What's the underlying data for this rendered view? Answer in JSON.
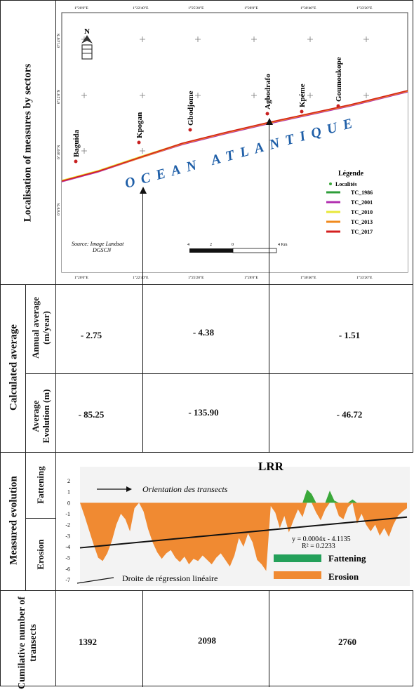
{
  "rows": {
    "localisation": "Localisation of measures by sectors",
    "calculated": "Calculated average",
    "annual": "Annual average (m/year)",
    "average_evolution": "Average Evolution (m)",
    "measured": "Measured evolution",
    "fattening": "Fattening",
    "erosion": "Erosion",
    "cumulative": "Cumilative number of transects"
  },
  "map": {
    "top_ticks": [
      "1°20'0\"E",
      "1°22'40\"E",
      "1°25'20\"E",
      "1°28'0\"E",
      "1°30'40\"E",
      "1°33'20\"E"
    ],
    "bottom_ticks": [
      "1°20'0\"E",
      "1°22'40\"E",
      "1°25'20\"E",
      "1°28'0\"E",
      "1°30'40\"E",
      "1°33'20\"E"
    ],
    "left_ticks": [
      "6°14'0\"N",
      "6°12'0\"N",
      "6°10'0\"N",
      "6°8'0\"N"
    ],
    "localities": [
      "Baguida",
      "Kpogan",
      "Gbodjome",
      "Agbodrafo",
      "Kpéme",
      "Goumoukope"
    ],
    "ocean_label": "OCEAN ATLANTIQUE",
    "north_label": "N",
    "source": "Source: Image Landsat DGSCN",
    "scale_labels": [
      "4",
      "2",
      "0",
      "4 Km"
    ],
    "legend": {
      "title": "Légende",
      "localites": "Localités",
      "items": [
        {
          "label": "TC_1986",
          "color": "#2e9e3a"
        },
        {
          "label": "TC_2001",
          "color": "#b22fb0"
        },
        {
          "label": "TC_2010",
          "color": "#e8e83a"
        },
        {
          "label": "TC_2013",
          "color": "#f08a1e"
        },
        {
          "label": "TC_2017",
          "color": "#d41f1f"
        }
      ]
    }
  },
  "annual_values": [
    "- 2.75",
    "- 4.38",
    "- 1.51"
  ],
  "evolution_values": [
    "- 85.25",
    "- 135.90",
    "- 46.72"
  ],
  "transect_values": [
    "1392",
    "2098",
    "2760"
  ],
  "chart_data": {
    "type": "area",
    "title": "LRR",
    "ylim": [
      -7,
      2
    ],
    "yticks": [
      2,
      1,
      0,
      -1,
      -2,
      -3,
      -4,
      -5,
      -6,
      -7
    ],
    "series": [
      {
        "name": "Fattening",
        "color": "#3aa83a"
      },
      {
        "name": "Erosion",
        "color": "#f08a32"
      }
    ],
    "profile": [
      0,
      -1.2,
      -2.5,
      -3.8,
      -5.0,
      -5.3,
      -4.6,
      -3.5,
      -2.0,
      -1.0,
      -1.5,
      -2.6,
      -0.5,
      0,
      -0.8,
      -2.4,
      -3.6,
      -4.5,
      -5.1,
      -4.6,
      -4.3,
      -5.0,
      -5.4,
      -4.9,
      -5.6,
      -5.1,
      -5.3,
      -4.8,
      -5.2,
      -5.6,
      -5.0,
      -4.6,
      -5.2,
      -5.8,
      -4.8,
      -3.2,
      -4.0,
      -2.8,
      -3.6,
      -5.2,
      -5.6,
      -6.2,
      -0.3,
      -0.9,
      -2.3,
      -1.2,
      -2.7,
      -1.6,
      -0.6,
      -1.3,
      1.2,
      0.8,
      -0.9,
      -1.6,
      -0.6,
      1.1,
      0.2,
      -1.2,
      -1.5,
      -0.4,
      0.3,
      -1.9,
      -1.0,
      -2.0,
      -2.6,
      -2.0,
      -3.0,
      -2.3,
      -3.1,
      -2.0,
      -1.2,
      -0.8,
      -0.5
    ],
    "regression": {
      "equation": "y = 0.0004x - 4.1135",
      "r2": "R² = 0.2233",
      "start": -4.1,
      "end": -1.3
    },
    "annotations": {
      "orientation": "Orientation des transects",
      "regression_line": "Droite de régression linéaire"
    }
  }
}
